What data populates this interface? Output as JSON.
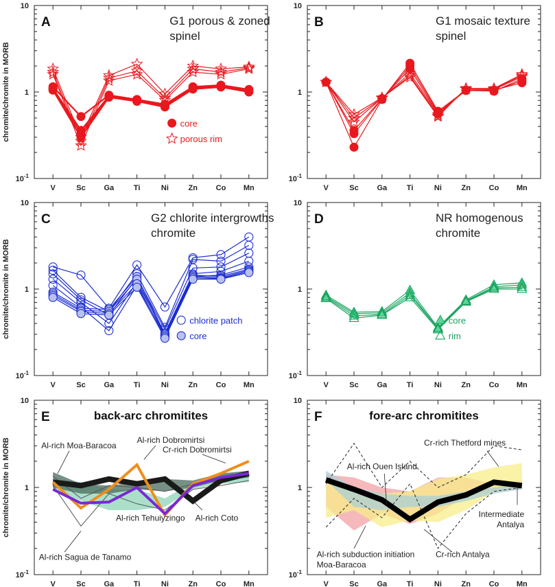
{
  "y_axis_label": "chromite/chromite in MORB",
  "chart_data": [
    {
      "id": "A",
      "type": "line",
      "letter": "A",
      "title_lines": [
        "G1 porous & zoned",
        "spinel"
      ],
      "categories": [
        "V",
        "Sc",
        "Ga",
        "Ti",
        "Ni",
        "Zn",
        "Co",
        "Mn"
      ],
      "yscale": "log",
      "ylim": [
        0.1,
        10
      ],
      "ytick_labels": [
        "10",
        "1",
        "10-1"
      ],
      "color": "#e8191e",
      "legend": [
        {
          "label": "core",
          "marker": "circle-filled"
        },
        {
          "label": "porous rim",
          "marker": "star-open"
        }
      ],
      "series": [
        {
          "name": "core",
          "marker": "circle-filled",
          "values": [
            1.15,
            0.52,
            0.92,
            0.82,
            0.72,
            1.15,
            1.2,
            1.07
          ]
        },
        {
          "name": "core",
          "marker": "circle-filled",
          "values": [
            1.1,
            0.36,
            0.9,
            0.8,
            0.7,
            1.13,
            1.18,
            1.05
          ]
        },
        {
          "name": "core",
          "marker": "circle-filled",
          "values": [
            1.08,
            0.33,
            0.88,
            0.79,
            0.68,
            1.1,
            1.16,
            1.02
          ]
        },
        {
          "name": "core",
          "marker": "circle-filled",
          "values": [
            1.05,
            0.3,
            0.87,
            0.78,
            0.67,
            1.08,
            1.14,
            1.0
          ]
        },
        {
          "name": "porous rim",
          "marker": "star-open",
          "values": [
            1.85,
            0.3,
            1.55,
            2.1,
            0.95,
            2.0,
            1.85,
            1.95
          ]
        },
        {
          "name": "porous rim",
          "marker": "star-open",
          "values": [
            1.7,
            0.27,
            1.45,
            1.75,
            0.85,
            1.85,
            1.7,
            1.9
          ]
        },
        {
          "name": "porous rim",
          "marker": "star-open",
          "values": [
            1.6,
            0.24,
            1.35,
            1.6,
            0.8,
            1.7,
            1.6,
            1.85
          ]
        }
      ]
    },
    {
      "id": "B",
      "type": "line",
      "letter": "B",
      "title_lines": [
        "G1 mosaic texture",
        "spinel"
      ],
      "categories": [
        "V",
        "Sc",
        "Ga",
        "Ti",
        "Ni",
        "Zn",
        "Co",
        "Mn"
      ],
      "yscale": "log",
      "ylim": [
        0.1,
        10
      ],
      "ytick_labels": [
        "10",
        "1",
        "10-1"
      ],
      "color": "#e8191e",
      "legend": [],
      "series": [
        {
          "name": "core",
          "marker": "circle-filled",
          "values": [
            1.3,
            0.23,
            0.82,
            2.15,
            0.6,
            1.05,
            1.05,
            1.28
          ]
        },
        {
          "name": "core",
          "marker": "circle-filled",
          "values": [
            1.3,
            0.33,
            0.83,
            2.0,
            0.58,
            1.04,
            1.03,
            1.35
          ]
        },
        {
          "name": "core",
          "marker": "circle-filled",
          "values": [
            1.3,
            0.36,
            0.84,
            1.85,
            0.56,
            1.05,
            1.02,
            1.42
          ]
        },
        {
          "name": "porous rim",
          "marker": "star-open",
          "values": [
            1.3,
            0.45,
            0.85,
            1.65,
            0.55,
            1.08,
            1.07,
            1.5
          ]
        },
        {
          "name": "porous rim",
          "marker": "star-open",
          "values": [
            1.3,
            0.5,
            0.85,
            1.55,
            0.53,
            1.1,
            1.08,
            1.55
          ]
        },
        {
          "name": "porous rim",
          "marker": "star-open",
          "values": [
            1.3,
            0.55,
            0.86,
            1.48,
            0.52,
            1.1,
            1.1,
            1.6
          ]
        }
      ]
    },
    {
      "id": "C",
      "type": "line",
      "letter": "C",
      "title_lines": [
        "G2 chlorite intergrowths",
        "chromite"
      ],
      "categories": [
        "V",
        "Sc",
        "Ga",
        "Ti",
        "Ni",
        "Zn",
        "Co",
        "Mn"
      ],
      "yscale": "log",
      "ylim": [
        0.1,
        10
      ],
      "ytick_labels": [
        "10",
        "1",
        "10-1"
      ],
      "color": "#1c2dd0",
      "legend": [
        {
          "label": "chlorite patch",
          "marker": "circle-open"
        },
        {
          "label": "core",
          "marker": "circle-filled-light"
        }
      ],
      "series": [
        {
          "name": "chlorite patch",
          "marker": "circle-open",
          "values": [
            1.8,
            1.45,
            0.6,
            1.9,
            0.62,
            2.3,
            2.5,
            4.0
          ]
        },
        {
          "name": "chlorite patch",
          "marker": "circle-open",
          "values": [
            1.65,
            0.8,
            0.55,
            1.5,
            0.36,
            2.2,
            2.1,
            3.2
          ]
        },
        {
          "name": "chlorite patch",
          "marker": "circle-open",
          "values": [
            1.5,
            0.75,
            0.5,
            1.35,
            0.34,
            1.75,
            1.8,
            2.6
          ]
        },
        {
          "name": "chlorite patch",
          "marker": "circle-open",
          "values": [
            1.3,
            0.7,
            0.4,
            1.2,
            0.31,
            1.5,
            1.6,
            2.1
          ]
        },
        {
          "name": "chlorite patch",
          "marker": "circle-open",
          "values": [
            1.1,
            0.62,
            0.33,
            1.1,
            0.29,
            1.4,
            1.45,
            1.8
          ]
        },
        {
          "name": "core",
          "marker": "circle-filled-light",
          "values": [
            0.92,
            0.6,
            0.58,
            1.4,
            0.3,
            1.45,
            1.4,
            1.7
          ]
        },
        {
          "name": "core",
          "marker": "circle-filled-light",
          "values": [
            0.88,
            0.57,
            0.55,
            1.3,
            0.29,
            1.4,
            1.35,
            1.65
          ]
        },
        {
          "name": "core",
          "marker": "circle-filled-light",
          "values": [
            0.84,
            0.55,
            0.52,
            1.15,
            0.28,
            1.35,
            1.32,
            1.6
          ]
        },
        {
          "name": "core",
          "marker": "circle-filled-light",
          "values": [
            0.8,
            0.52,
            0.5,
            1.05,
            0.27,
            1.3,
            1.3,
            1.55
          ]
        }
      ]
    },
    {
      "id": "D",
      "type": "line",
      "letter": "D",
      "title_lines": [
        "NR homogenous",
        "chromite"
      ],
      "categories": [
        "V",
        "Sc",
        "Ga",
        "Ti",
        "Ni",
        "Zn",
        "Co",
        "Mn"
      ],
      "yscale": "log",
      "ylim": [
        0.1,
        10
      ],
      "ytick_labels": [
        "10",
        "1",
        "10-1"
      ],
      "color": "#18a45e",
      "legend": [
        {
          "label": "core",
          "marker": "triangle-filled"
        },
        {
          "label": "rim",
          "marker": "triangle-open"
        }
      ],
      "series": [
        {
          "name": "core",
          "marker": "triangle-filled",
          "values": [
            0.85,
            0.54,
            0.55,
            0.97,
            0.36,
            0.75,
            1.12,
            1.18
          ]
        },
        {
          "name": "core",
          "marker": "triangle-filled",
          "values": [
            0.82,
            0.52,
            0.53,
            0.9,
            0.35,
            0.73,
            1.06,
            1.12
          ]
        },
        {
          "name": "rim",
          "marker": "triangle-open",
          "values": [
            0.8,
            0.49,
            0.51,
            0.85,
            0.35,
            0.72,
            1.03,
            1.05
          ]
        },
        {
          "name": "rim",
          "marker": "triangle-open",
          "values": [
            0.78,
            0.46,
            0.5,
            0.8,
            0.34,
            0.71,
            1.0,
            1.0
          ]
        }
      ]
    },
    {
      "id": "E",
      "type": "area",
      "letter": "E",
      "title_lines": [
        "back-arc chromitites"
      ],
      "categories": [
        "V",
        "Sc",
        "Ga",
        "Ti",
        "Ni",
        "Zn",
        "Co",
        "Mn"
      ],
      "yscale": "log",
      "ylim": [
        0.1,
        10
      ],
      "ytick_labels": [
        "10",
        "1",
        "10-1"
      ],
      "annotations": [
        "Al-rich Moa-Baracoa",
        "Al-rich Dobromirtsi",
        "Cr-rich Dobromirtsi",
        "Al-rich Tehuiyzingo",
        "Al-rich Coto",
        "Al-rich Sagua de Tanamo"
      ],
      "series": [
        {
          "name": "Al-rich Tehuiyzingo",
          "kind": "band",
          "color": "#8fd4b8",
          "upper": [
            1.25,
            1.15,
            0.95,
            0.95,
            0.75,
            1.15,
            1.4,
            1.55
          ],
          "lower": [
            0.95,
            0.7,
            0.55,
            0.55,
            0.6,
            0.95,
            1.1,
            1.15
          ]
        },
        {
          "name": "Al-rich Moa-Baracoa",
          "kind": "band",
          "color": "#4a6b5c",
          "upper": [
            1.5,
            1.1,
            1.05,
            1.15,
            1.25,
            1.2,
            1.45,
            1.55
          ],
          "lower": [
            1.0,
            0.85,
            0.85,
            0.95,
            0.9,
            1.0,
            1.2,
            1.3
          ]
        },
        {
          "name": "Al-rich Sagua de Tanamo",
          "kind": "envelope",
          "color": "#555555",
          "upper": [
            1.35,
            0.75,
            1.05,
            1.0,
            0.9,
            1.1,
            1.2,
            1.4
          ],
          "lower": [
            1.05,
            0.36,
            0.85,
            0.65,
            0.55,
            0.95,
            1.05,
            1.2
          ]
        },
        {
          "name": "Al-rich Coto",
          "kind": "line",
          "color": "#1a1a1a",
          "values": [
            1.15,
            1.05,
            1.25,
            1.1,
            1.25,
            0.7,
            1.2,
            1.45
          ]
        },
        {
          "name": "Al-rich Dobromirtsi",
          "kind": "line",
          "color": "#ef8e1c",
          "values": [
            1.15,
            0.58,
            0.95,
            1.82,
            0.48,
            1.1,
            1.45,
            2.0
          ]
        },
        {
          "name": "Cr-rich Dobromirtsi",
          "kind": "line",
          "color": "#7a28d4",
          "values": [
            0.95,
            0.66,
            0.68,
            1.0,
            0.5,
            1.05,
            1.3,
            1.45
          ]
        }
      ]
    },
    {
      "id": "F",
      "type": "area",
      "letter": "F",
      "title_lines": [
        "fore-arc chromitites"
      ],
      "categories": [
        "V",
        "Sc",
        "Ga",
        "Ti",
        "Ni",
        "Zn",
        "Co",
        "Mn"
      ],
      "yscale": "log",
      "ylim": [
        0.1,
        10
      ],
      "ytick_labels": [
        "10",
        "1",
        "10-1"
      ],
      "annotations": [
        "Cr-rich Thetford mines",
        "Al-rich Ouen Island",
        "Intermediate Antalya",
        "Al-rich subduction initiation Moa-Baracoa",
        "Cr-rich Antalya"
      ],
      "series": [
        {
          "name": "Al-rich subduction initiation Moa-Baracoa",
          "kind": "band",
          "color": "#f2a1a6",
          "upper": [
            1.4,
            1.3,
            1.0,
            0.9,
            1.3,
            1.3,
            1.1,
            1.2
          ],
          "lower": [
            0.6,
            0.32,
            0.5,
            0.38,
            0.5,
            0.8,
            0.9,
            0.95
          ]
        },
        {
          "name": "Cr-rich Antalya",
          "kind": "band",
          "color": "#f7ee8a",
          "upper": [
            1.2,
            0.9,
            0.85,
            0.9,
            1.25,
            1.4,
            1.7,
            1.9
          ],
          "lower": [
            0.45,
            0.55,
            0.35,
            0.42,
            0.4,
            0.55,
            0.9,
            1.0
          ]
        },
        {
          "name": "Al-rich Ouen Island",
          "kind": "band",
          "color": "#a9cfd6",
          "upper": [
            1.55,
            1.0,
            0.85,
            0.8,
            0.8,
            0.9,
            1.0,
            1.1
          ],
          "lower": [
            1.2,
            0.6,
            0.55,
            0.6,
            0.6,
            0.7,
            0.85,
            0.95
          ]
        },
        {
          "name": "Cr-rich Thetford mines",
          "kind": "envelope",
          "color": "#222222",
          "upper": [
            1.1,
            3.2,
            1.0,
            2.0,
            1.0,
            1.4,
            3.0,
            2.7
          ],
          "lower": [
            0.35,
            0.75,
            0.45,
            1.1,
            0.2,
            0.5,
            0.9,
            1.0
          ]
        },
        {
          "name": "Intermediate Antalya",
          "kind": "line",
          "color": "#000000",
          "values": [
            1.22,
            0.95,
            0.72,
            0.43,
            0.68,
            0.82,
            1.15,
            1.05
          ]
        }
      ]
    }
  ]
}
